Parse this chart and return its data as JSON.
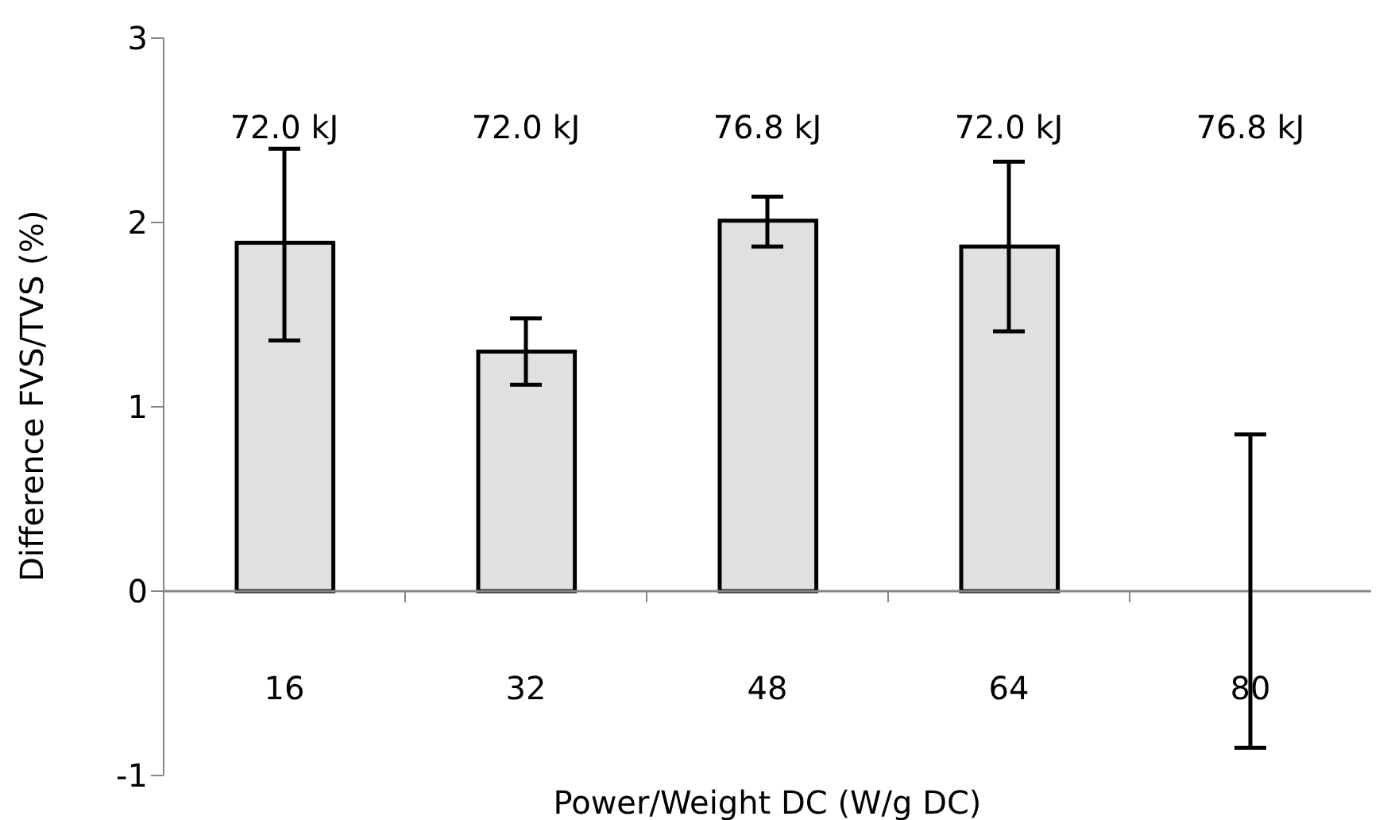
{
  "chart_data": {
    "type": "bar",
    "xlabel": "Power/Weight DC (W/g DC)",
    "ylabel": "Difference FVS/TVS (%)",
    "categories": [
      "16",
      "32",
      "48",
      "64",
      "80"
    ],
    "values": [
      1.89,
      1.3,
      2.01,
      1.87,
      0
    ],
    "errors": [
      [
        1.36,
        2.4
      ],
      [
        1.12,
        1.48
      ],
      [
        1.87,
        2.14
      ],
      [
        1.41,
        2.33
      ],
      [
        -0.85,
        0.85
      ]
    ],
    "color": "#e0e0e0",
    "ylim": [
      -1,
      3
    ],
    "yticks": [
      -1,
      0,
      1,
      2,
      3
    ],
    "grid": false,
    "legend": false,
    "annotations": [
      "72.0 kJ",
      "72.0 kJ",
      "76.8 kJ",
      "72.0 kJ",
      "76.8 kJ"
    ]
  }
}
